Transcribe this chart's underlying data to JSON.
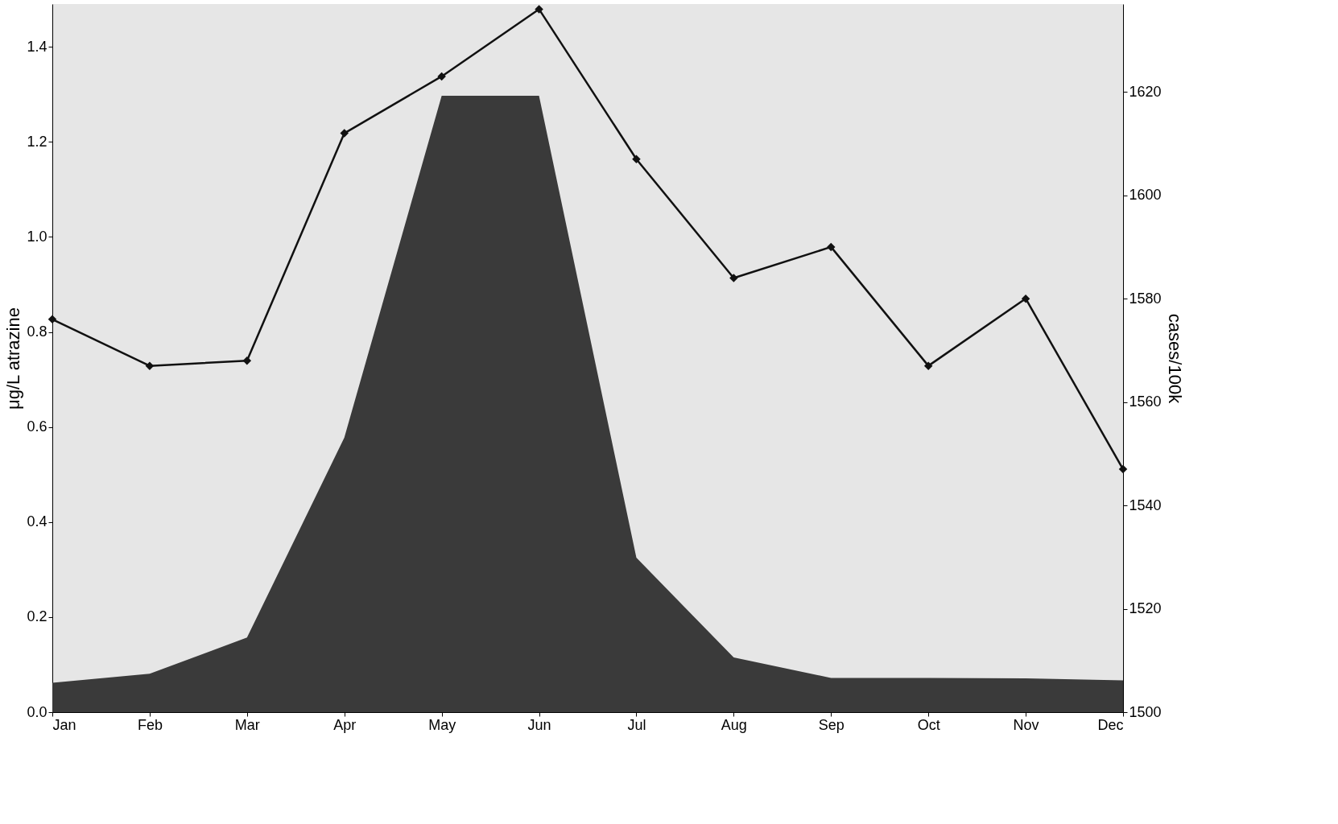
{
  "chart_data": {
    "type": "area",
    "ylabel": "μg/L atrazine",
    "y2label": "cases/100k",
    "categories": [
      "Jan",
      "Feb",
      "Mar",
      "Apr",
      "May",
      "Jun",
      "Jul",
      "Aug",
      "Sep",
      "Oct",
      "Nov",
      "Dec"
    ],
    "series": [
      {
        "color": "#3a3a3a",
        "values": [
          0.062,
          0.081,
          0.157,
          0.578,
          1.297,
          1.297,
          0.325,
          0.115,
          0.072,
          0.072,
          0.071,
          0.067
        ]
      },
      {
        "type": "line",
        "axis": "y2",
        "color": "#111111",
        "marker": "diamond",
        "line_style": "solid",
        "values": [
          1576,
          1567,
          1568,
          1612,
          1623,
          1636,
          1607,
          1584,
          1590,
          1567,
          1580,
          1547
        ]
      }
    ],
    "ylim": [
      0,
      1.49
    ],
    "yticks": [
      {
        "value": 0,
        "label": "0.0"
      },
      {
        "value": 0.2,
        "label": "0.2"
      },
      {
        "value": 0.4,
        "label": "0.4"
      },
      {
        "value": 0.6,
        "label": "0.6"
      },
      {
        "value": 0.8,
        "label": "0.8"
      },
      {
        "value": 1.0,
        "label": "1.0"
      },
      {
        "value": 1.2,
        "label": "1.2"
      },
      {
        "value": 1.4,
        "label": "1.4"
      }
    ],
    "y2lim": [
      1500,
      1637
    ],
    "y2ticks": [
      1500,
      1520,
      1540,
      1560,
      1580,
      1600,
      1620
    ],
    "grid": false
  }
}
